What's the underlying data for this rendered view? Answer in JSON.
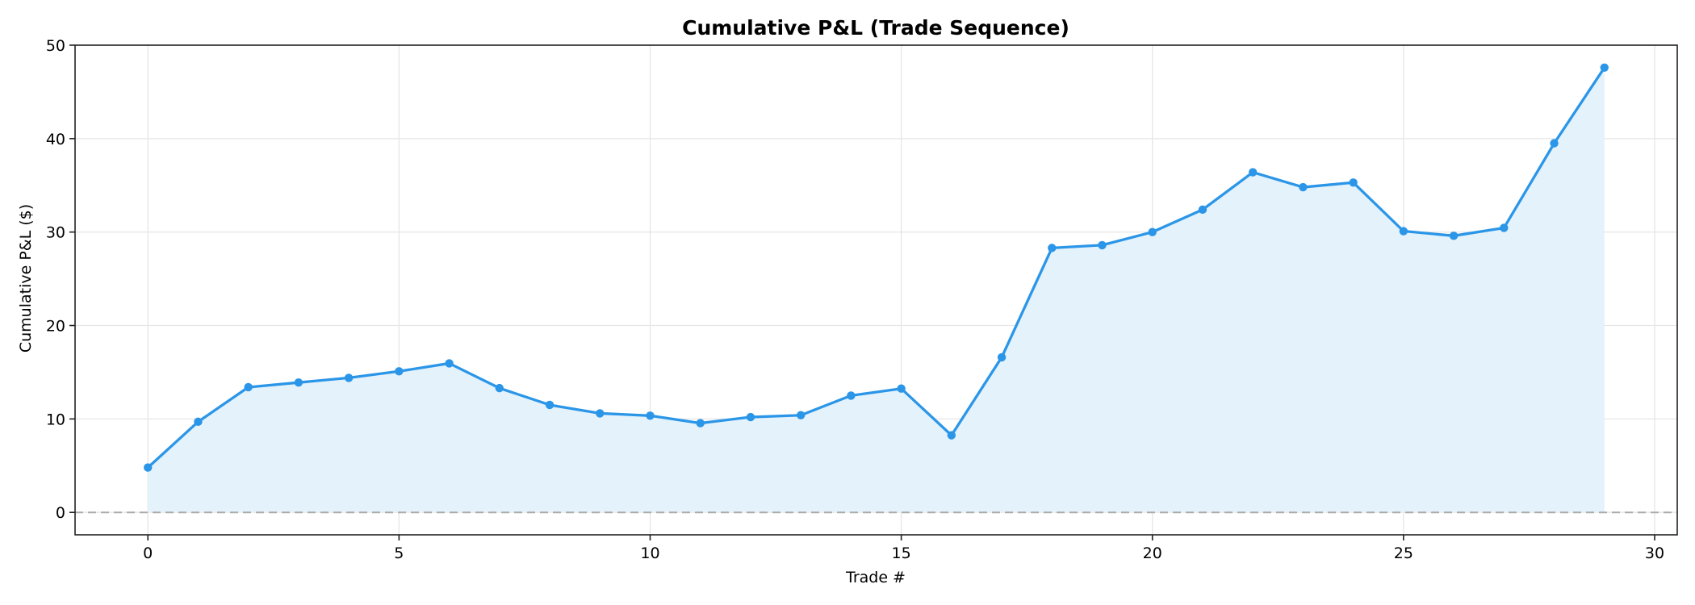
{
  "chart_data": {
    "type": "line",
    "title": "Cumulative P&L (Trade Sequence)",
    "xlabel": "Trade #",
    "ylabel": "Cumulative P&L ($)",
    "x": [
      0,
      1,
      2,
      3,
      4,
      5,
      6,
      7,
      8,
      9,
      10,
      11,
      12,
      13,
      14,
      15,
      16,
      17,
      18,
      19,
      20,
      21,
      22,
      23,
      24,
      25,
      26,
      27,
      28,
      29
    ],
    "series": [
      {
        "name": "Cumulative P&L",
        "values": [
          4.8,
          9.7,
          13.4,
          13.9,
          14.4,
          15.1,
          15.95,
          13.3,
          11.5,
          10.6,
          10.35,
          9.55,
          10.2,
          10.4,
          12.5,
          13.25,
          8.25,
          16.6,
          28.3,
          28.6,
          30.0,
          32.4,
          36.4,
          34.8,
          35.3,
          30.1,
          29.6,
          30.45,
          39.5,
          47.6
        ],
        "color": "#2b96e8",
        "fill": "area-to-zero",
        "fill_color": "#e4f2fc",
        "markers": true
      }
    ],
    "xlim": [
      -1.45,
      30.45
    ],
    "ylim": [
      -2.4,
      50
    ],
    "xticks": [
      0,
      5,
      10,
      15,
      20,
      25,
      30
    ],
    "yticks": [
      0,
      10,
      20,
      30,
      40,
      50
    ],
    "grid": true,
    "reference_line": {
      "y": 0,
      "style": "dashed",
      "color": "#aaaaaa"
    },
    "legend": null
  }
}
